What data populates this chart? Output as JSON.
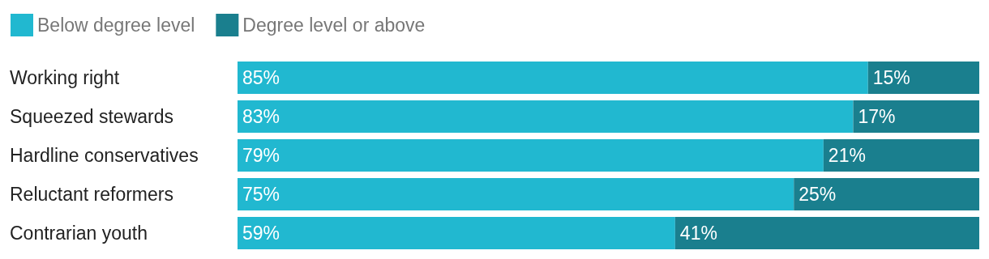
{
  "chart_data": {
    "type": "bar",
    "orientation": "horizontal",
    "stacked": true,
    "legend": "top left",
    "categories": [
      "Working right",
      "Squeezed stewards",
      "Hardline conservatives",
      "Reluctant reformers",
      "Contrarian youth"
    ],
    "series": [
      {
        "name": "Below degree level",
        "color": "#21b8d0",
        "values": [
          85,
          83,
          79,
          75,
          59
        ],
        "value_labels": [
          "85%",
          "83%",
          "79%",
          "75%",
          "59%"
        ]
      },
      {
        "name": "Degree level or above",
        "color": "#1a7f8e",
        "values": [
          15,
          17,
          21,
          25,
          41
        ],
        "value_labels": [
          "15%",
          "17%",
          "21%",
          "25%",
          "41%"
        ]
      }
    ]
  }
}
